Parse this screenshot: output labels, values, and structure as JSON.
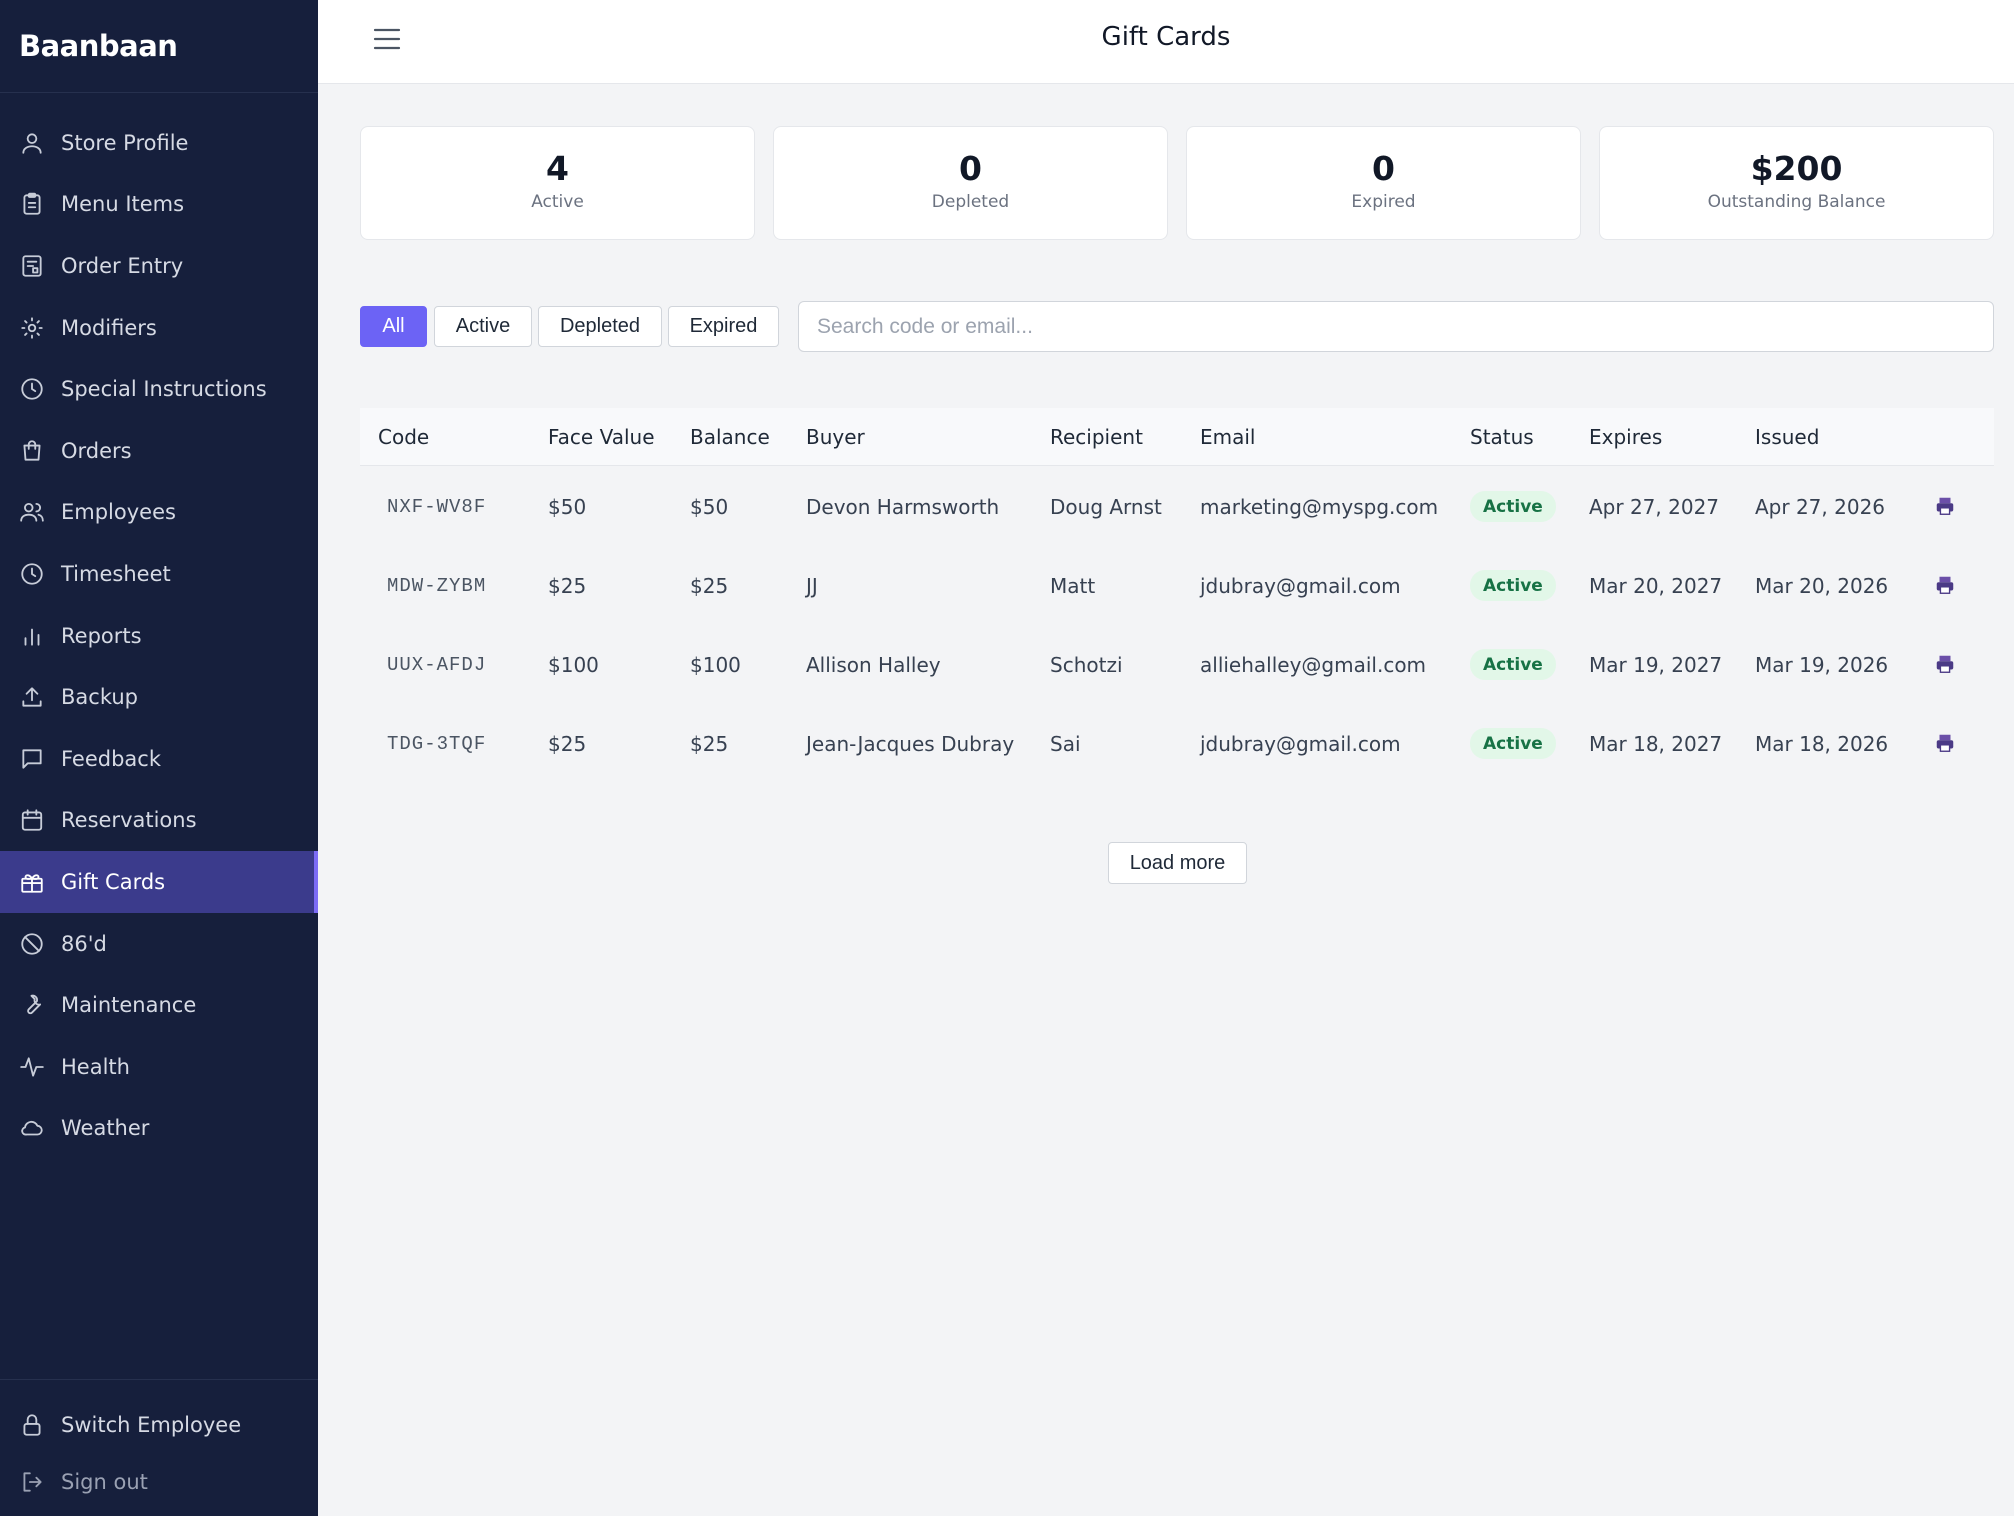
{
  "app": {
    "brand": "Baanbaan"
  },
  "sidebar": {
    "items": [
      {
        "label": "Store Profile",
        "icon": "user-icon"
      },
      {
        "label": "Menu Items",
        "icon": "clipboard-icon"
      },
      {
        "label": "Order Entry",
        "icon": "order-entry-icon"
      },
      {
        "label": "Modifiers",
        "icon": "sun-icon"
      },
      {
        "label": "Special Instructions",
        "icon": "clock-icon"
      },
      {
        "label": "Orders",
        "icon": "shopping-bag-icon"
      },
      {
        "label": "Employees",
        "icon": "users-icon"
      },
      {
        "label": "Timesheet",
        "icon": "clock-icon"
      },
      {
        "label": "Reports",
        "icon": "bar-chart-icon"
      },
      {
        "label": "Backup",
        "icon": "upload-icon"
      },
      {
        "label": "Feedback",
        "icon": "message-icon"
      },
      {
        "label": "Reservations",
        "icon": "calendar-icon"
      },
      {
        "label": "Gift Cards",
        "icon": "gift-icon"
      },
      {
        "label": "86'd",
        "icon": "ban-icon"
      },
      {
        "label": "Maintenance",
        "icon": "wrench-icon"
      },
      {
        "label": "Health",
        "icon": "activity-icon"
      },
      {
        "label": "Weather",
        "icon": "cloud-icon"
      }
    ],
    "active": "Gift Cards",
    "bottom": {
      "switch_employee": "Switch Employee",
      "sign_out": "Sign out"
    }
  },
  "header": {
    "title": "Gift Cards",
    "menu_icon": "hamburger-icon"
  },
  "stats": [
    {
      "value": "4",
      "label": "Active"
    },
    {
      "value": "0",
      "label": "Depleted"
    },
    {
      "value": "0",
      "label": "Expired"
    },
    {
      "value": "$200",
      "label": "Outstanding Balance"
    }
  ],
  "filters": {
    "tabs": [
      "All",
      "Active",
      "Depleted",
      "Expired"
    ],
    "selected": "All",
    "search_placeholder": "Search code or email..."
  },
  "table": {
    "columns": [
      "Code",
      "Face Value",
      "Balance",
      "Buyer",
      "Recipient",
      "Email",
      "Status",
      "Expires",
      "Issued"
    ],
    "rows": [
      {
        "code": "NXF-WV8F",
        "face_value": "$50",
        "balance": "$50",
        "buyer": "Devon Harmsworth",
        "recipient": "Doug Arnst",
        "email": "marketing@myspg.com",
        "status": "Active",
        "expires": "Apr 27, 2027",
        "issued": "Apr 27, 2026"
      },
      {
        "code": "MDW-ZYBM",
        "face_value": "$25",
        "balance": "$25",
        "buyer": "JJ",
        "recipient": "Matt",
        "email": "jdubray@gmail.com",
        "status": "Active",
        "expires": "Mar 20, 2027",
        "issued": "Mar 20, 2026"
      },
      {
        "code": "UUX-AFDJ",
        "face_value": "$100",
        "balance": "$100",
        "buyer": "Allison Halley",
        "recipient": "Schotzi",
        "email": "alliehalley@gmail.com",
        "status": "Active",
        "expires": "Mar 19, 2027",
        "issued": "Mar 19, 2026"
      },
      {
        "code": "TDG-3TQF",
        "face_value": "$25",
        "balance": "$25",
        "buyer": "Jean-Jacques Dubray",
        "recipient": "Sai",
        "email": "jdubray@gmail.com",
        "status": "Active",
        "expires": "Mar 18, 2027",
        "issued": "Mar 18, 2026"
      }
    ],
    "row_action_icon": "printer-icon"
  },
  "load_more_label": "Load more",
  "colors": {
    "sidebar_bg": "#161f3c",
    "active_nav_bg": "#3b3b8c",
    "accent": "#6c63f5",
    "status_active_bg": "#e2f7e8",
    "status_active_text": "#177245"
  }
}
